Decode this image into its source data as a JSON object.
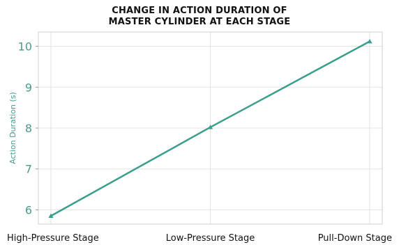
{
  "chart_data": {
    "type": "line",
    "title_lines": [
      "CHANGE IN ACTION DURATION OF",
      "MASTER CYLINDER AT EACH STAGE"
    ],
    "xlabel": "",
    "ylabel": "Action Duration (s)",
    "categories": [
      "High-Pressure Stage",
      "Low-Pressure Stage",
      "Pull-Down Stage"
    ],
    "values": [
      5.85,
      8.02,
      10.12
    ],
    "yticks": [
      6,
      7,
      8,
      9,
      10
    ],
    "ylim": [
      5.65,
      10.35
    ],
    "grid": true,
    "marker": "triangle",
    "line_color": "#3a9e8c",
    "axis_label_color": "#4a9b8e",
    "grid_color": "#e3e3e3",
    "frame_color": "#cfcfcf"
  }
}
